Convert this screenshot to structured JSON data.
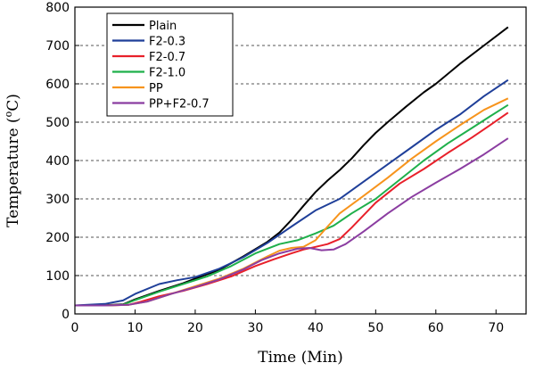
{
  "chart_data": {
    "type": "line",
    "title": "",
    "xlabel": "Time (Min)",
    "ylabel_main": "Temperature (",
    "ylabel_sup": "o",
    "ylabel_end": "C)",
    "xlim": [
      0,
      75
    ],
    "ylim": [
      0,
      800
    ],
    "xticks": [
      0,
      10,
      20,
      30,
      40,
      50,
      60,
      70
    ],
    "yticks": [
      0,
      100,
      200,
      300,
      400,
      500,
      600,
      700,
      800
    ],
    "grid": "horizontal-dashed",
    "legend_position": "top-left",
    "series": [
      {
        "name": "Plain",
        "color": "#000000",
        "points": [
          [
            0,
            22
          ],
          [
            5,
            23
          ],
          [
            8,
            25
          ],
          [
            10,
            38
          ],
          [
            14,
            60
          ],
          [
            18,
            80
          ],
          [
            20,
            92
          ],
          [
            24,
            115
          ],
          [
            28,
            150
          ],
          [
            32,
            188
          ],
          [
            34,
            212
          ],
          [
            36,
            245
          ],
          [
            38,
            282
          ],
          [
            40,
            318
          ],
          [
            42,
            348
          ],
          [
            44,
            375
          ],
          [
            46,
            405
          ],
          [
            48,
            440
          ],
          [
            50,
            472
          ],
          [
            52,
            500
          ],
          [
            55,
            540
          ],
          [
            58,
            578
          ],
          [
            60,
            600
          ],
          [
            64,
            652
          ],
          [
            68,
            700
          ],
          [
            72,
            748
          ]
        ]
      },
      {
        "name": "F2-0.3",
        "color": "#1f3f99",
        "points": [
          [
            0,
            22
          ],
          [
            5,
            26
          ],
          [
            8,
            35
          ],
          [
            10,
            52
          ],
          [
            14,
            78
          ],
          [
            17,
            88
          ],
          [
            20,
            96
          ],
          [
            24,
            118
          ],
          [
            28,
            148
          ],
          [
            32,
            185
          ],
          [
            36,
            228
          ],
          [
            40,
            270
          ],
          [
            44,
            300
          ],
          [
            48,
            345
          ],
          [
            52,
            390
          ],
          [
            56,
            435
          ],
          [
            60,
            480
          ],
          [
            64,
            520
          ],
          [
            68,
            568
          ],
          [
            72,
            610
          ]
        ]
      },
      {
        "name": "F2-0.7",
        "color": "#e8202a",
        "points": [
          [
            0,
            22
          ],
          [
            5,
            22
          ],
          [
            9,
            24
          ],
          [
            11,
            32
          ],
          [
            14,
            46
          ],
          [
            18,
            60
          ],
          [
            22,
            78
          ],
          [
            26,
            98
          ],
          [
            30,
            125
          ],
          [
            33,
            142
          ],
          [
            36,
            158
          ],
          [
            38,
            168
          ],
          [
            40,
            175
          ],
          [
            42,
            182
          ],
          [
            44,
            195
          ],
          [
            46,
            225
          ],
          [
            50,
            290
          ],
          [
            54,
            340
          ],
          [
            58,
            378
          ],
          [
            62,
            420
          ],
          [
            66,
            460
          ],
          [
            69,
            492
          ],
          [
            72,
            525
          ]
        ]
      },
      {
        "name": "F2-1.0",
        "color": "#1fb04b",
        "points": [
          [
            0,
            22
          ],
          [
            5,
            22
          ],
          [
            8,
            24
          ],
          [
            10,
            36
          ],
          [
            14,
            58
          ],
          [
            18,
            78
          ],
          [
            22,
            98
          ],
          [
            26,
            125
          ],
          [
            30,
            158
          ],
          [
            34,
            182
          ],
          [
            37,
            192
          ],
          [
            40,
            210
          ],
          [
            43,
            230
          ],
          [
            46,
            262
          ],
          [
            50,
            300
          ],
          [
            54,
            350
          ],
          [
            58,
            400
          ],
          [
            62,
            445
          ],
          [
            66,
            485
          ],
          [
            69,
            515
          ],
          [
            72,
            545
          ]
        ]
      },
      {
        "name": "PP",
        "color": "#f7941d",
        "points": [
          [
            0,
            22
          ],
          [
            5,
            22
          ],
          [
            9,
            24
          ],
          [
            12,
            32
          ],
          [
            16,
            52
          ],
          [
            20,
            72
          ],
          [
            24,
            92
          ],
          [
            28,
            118
          ],
          [
            32,
            150
          ],
          [
            34,
            165
          ],
          [
            36,
            172
          ],
          [
            38,
            175
          ],
          [
            40,
            192
          ],
          [
            42,
            228
          ],
          [
            44,
            262
          ],
          [
            48,
            308
          ],
          [
            52,
            355
          ],
          [
            56,
            405
          ],
          [
            60,
            450
          ],
          [
            64,
            492
          ],
          [
            68,
            532
          ],
          [
            72,
            562
          ]
        ]
      },
      {
        "name": "PP+F2-0.7",
        "color": "#8b3da1",
        "points": [
          [
            0,
            22
          ],
          [
            5,
            22
          ],
          [
            9,
            24
          ],
          [
            12,
            32
          ],
          [
            16,
            52
          ],
          [
            20,
            70
          ],
          [
            24,
            90
          ],
          [
            28,
            116
          ],
          [
            31,
            140
          ],
          [
            34,
            158
          ],
          [
            37,
            170
          ],
          [
            39,
            172
          ],
          [
            41,
            166
          ],
          [
            43,
            168
          ],
          [
            45,
            182
          ],
          [
            48,
            215
          ],
          [
            52,
            262
          ],
          [
            56,
            305
          ],
          [
            60,
            342
          ],
          [
            64,
            378
          ],
          [
            68,
            416
          ],
          [
            72,
            458
          ]
        ]
      }
    ]
  }
}
